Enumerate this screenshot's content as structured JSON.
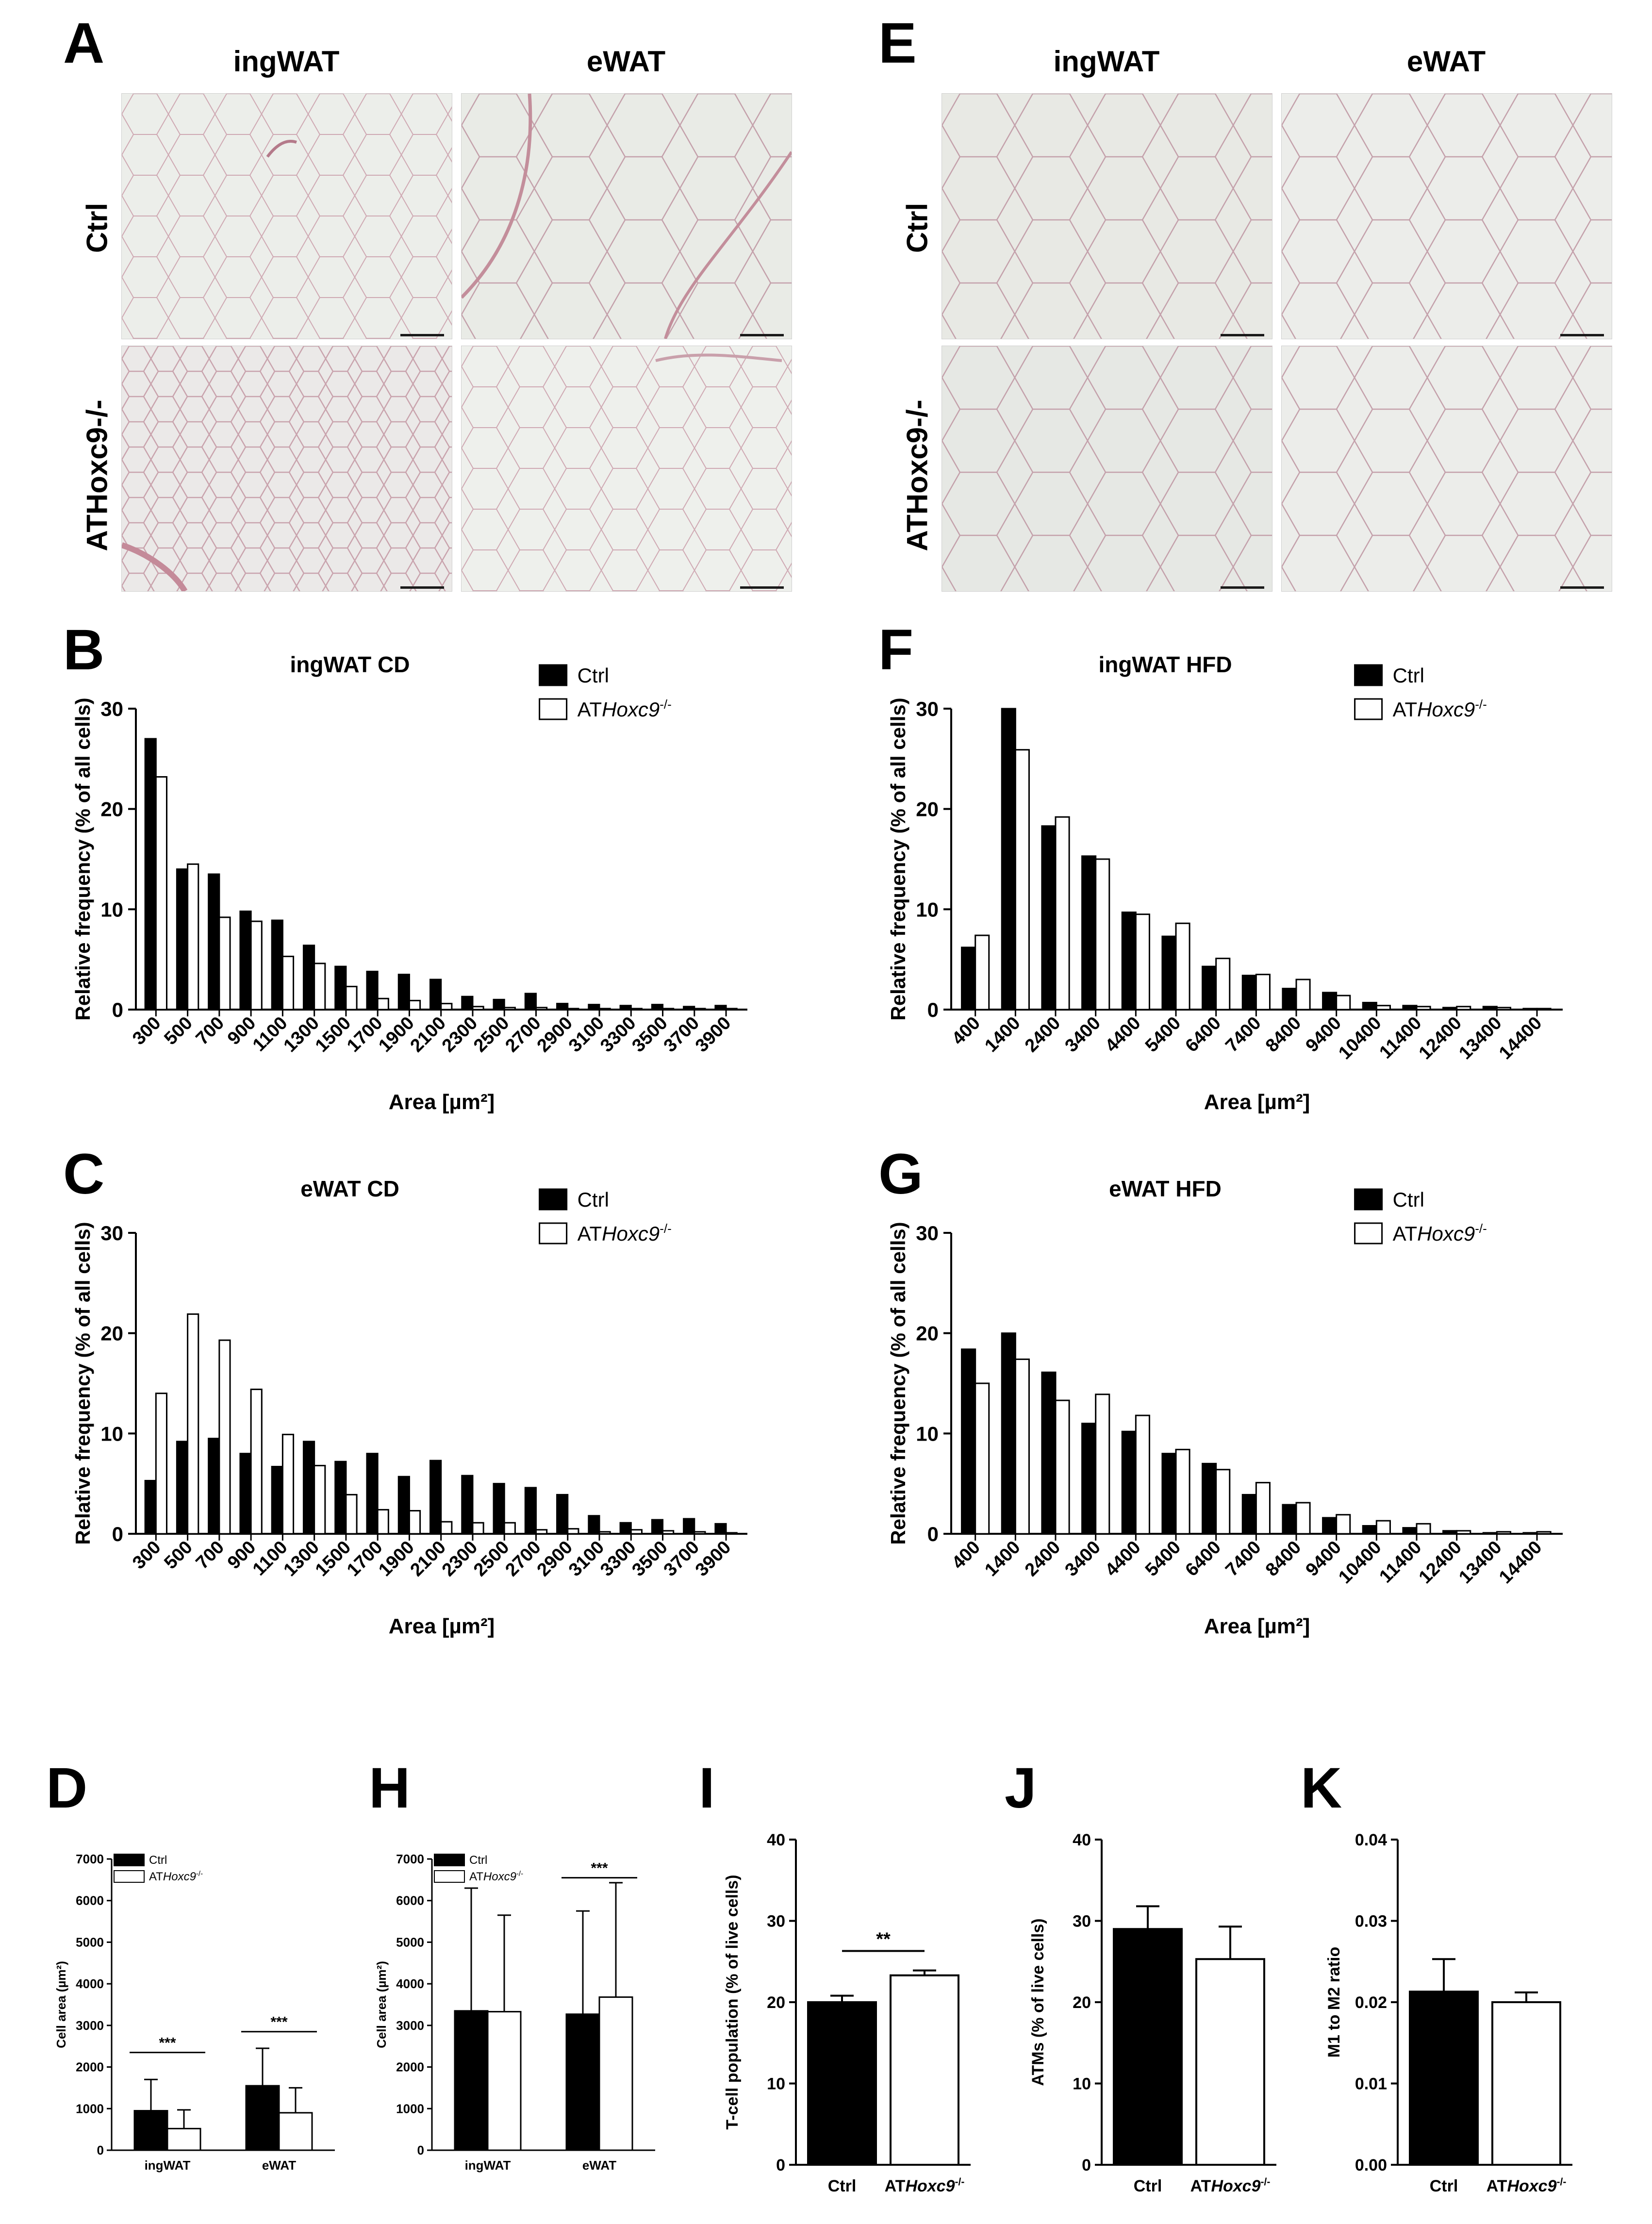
{
  "panels": {
    "A": {
      "letter": "A",
      "cols": [
        "ingWAT",
        "eWAT"
      ],
      "rows": [
        "Ctrl",
        "ATHoxc9-/-"
      ]
    },
    "E": {
      "letter": "E",
      "cols": [
        "ingWAT",
        "eWAT"
      ],
      "rows": [
        "Ctrl",
        "ATHoxc9-/-"
      ]
    },
    "letters": {
      "B": "B",
      "C": "C",
      "D": "D",
      "F": "F",
      "G": "G",
      "H": "H",
      "I": "I",
      "J": "J",
      "K": "K"
    }
  },
  "colors": {
    "ctrl": "#000000",
    "ko": "#ffffff",
    "tissue_bg": "#eceeea",
    "membrane": "#c9a3ad"
  },
  "chart_data": [
    {
      "id": "B",
      "type": "bar",
      "title": "ingWAT CD",
      "xlabel": "Area [µm²]",
      "ylabel": "Relative frequency (% of all cells)",
      "ylim": [
        0,
        30
      ],
      "yticks": [
        0,
        10,
        20,
        30
      ],
      "categories": [
        "300",
        "500",
        "700",
        "900",
        "1100",
        "1300",
        "1500",
        "1700",
        "1900",
        "2100",
        "2300",
        "2500",
        "2700",
        "2900",
        "3100",
        "3300",
        "3500",
        "3700",
        "3900"
      ],
      "series": [
        {
          "name": "Ctrl",
          "values": [
            27,
            14,
            13.5,
            9.8,
            8.9,
            6.4,
            4.3,
            3.8,
            3.5,
            3.0,
            1.3,
            1.0,
            1.6,
            0.6,
            0.5,
            0.4,
            0.5,
            0.3,
            0.4
          ]
        },
        {
          "name": "ATHoxc9-/-",
          "values": [
            23.2,
            14.5,
            9.2,
            8.8,
            5.3,
            4.6,
            2.3,
            1.1,
            0.9,
            0.6,
            0.3,
            0.2,
            0.2,
            0.1,
            0.1,
            0.1,
            0.1,
            0.1,
            0.1
          ]
        }
      ],
      "legend": "top-right"
    },
    {
      "id": "C",
      "type": "bar",
      "title": "eWAT CD",
      "xlabel": "Area [µm²]",
      "ylabel": "Relative frequency (% of all cells)",
      "ylim": [
        0,
        30
      ],
      "yticks": [
        0,
        10,
        20,
        30
      ],
      "categories": [
        "300",
        "500",
        "700",
        "900",
        "1100",
        "1300",
        "1500",
        "1700",
        "1900",
        "2100",
        "2300",
        "2500",
        "2700",
        "2900",
        "3100",
        "3300",
        "3500",
        "3700",
        "3900"
      ],
      "series": [
        {
          "name": "Ctrl",
          "values": [
            5.3,
            9.2,
            9.5,
            8.0,
            6.7,
            9.2,
            7.2,
            8.0,
            5.7,
            7.3,
            5.8,
            5.0,
            4.6,
            3.9,
            1.8,
            1.1,
            1.4,
            1.5,
            1.0
          ]
        },
        {
          "name": "ATHoxc9-/-",
          "values": [
            14.0,
            21.9,
            19.3,
            14.4,
            9.9,
            6.8,
            3.9,
            2.4,
            2.3,
            1.2,
            1.1,
            1.1,
            0.4,
            0.5,
            0.2,
            0.4,
            0.3,
            0.2,
            0.1
          ]
        }
      ],
      "legend": "top-right"
    },
    {
      "id": "F",
      "type": "bar",
      "title": "ingWAT HFD",
      "xlabel": "Area [µm²]",
      "ylabel": "Relative frequency (% of all cells)",
      "ylim": [
        0,
        30
      ],
      "yticks": [
        0,
        10,
        20,
        30
      ],
      "categories": [
        "400",
        "1400",
        "2400",
        "3400",
        "4400",
        "5400",
        "6400",
        "7400",
        "8400",
        "9400",
        "10400",
        "11400",
        "12400",
        "13400",
        "14400"
      ],
      "series": [
        {
          "name": "Ctrl",
          "values": [
            6.2,
            30.0,
            18.3,
            15.3,
            9.7,
            7.3,
            4.3,
            3.4,
            2.1,
            1.7,
            0.7,
            0.4,
            0.2,
            0.3,
            0.1
          ]
        },
        {
          "name": "ATHoxc9-/-",
          "values": [
            7.4,
            25.9,
            19.2,
            15.0,
            9.5,
            8.6,
            5.1,
            3.5,
            3.0,
            1.4,
            0.4,
            0.3,
            0.3,
            0.2,
            0.1
          ]
        }
      ],
      "legend": "top-right"
    },
    {
      "id": "G",
      "type": "bar",
      "title": "eWAT HFD",
      "xlabel": "Area [µm²]",
      "ylabel": "Relative frequency (% of all cells)",
      "ylim": [
        0,
        30
      ],
      "yticks": [
        0,
        10,
        20,
        30
      ],
      "categories": [
        "400",
        "1400",
        "2400",
        "3400",
        "4400",
        "5400",
        "6400",
        "7400",
        "8400",
        "9400",
        "10400",
        "11400",
        "12400",
        "13400",
        "14400"
      ],
      "series": [
        {
          "name": "Ctrl",
          "values": [
            18.4,
            20.0,
            16.1,
            11.0,
            10.2,
            8.0,
            7.0,
            3.9,
            2.9,
            1.6,
            0.8,
            0.6,
            0.3,
            0.1,
            0.1
          ]
        },
        {
          "name": "ATHoxc9-/-",
          "values": [
            15.0,
            17.4,
            13.3,
            13.9,
            11.8,
            8.4,
            6.4,
            5.1,
            3.1,
            1.9,
            1.3,
            1.0,
            0.3,
            0.2,
            0.2
          ]
        }
      ],
      "legend": "top-right"
    },
    {
      "id": "D",
      "type": "bar",
      "ylabel": "Cell area (µm²)",
      "ylim": [
        0,
        7000
      ],
      "yticks": [
        0,
        1000,
        2000,
        3000,
        4000,
        5000,
        6000,
        7000
      ],
      "categories": [
        "ingWAT",
        "eWAT"
      ],
      "series": [
        {
          "name": "Ctrl",
          "values": [
            950,
            1550
          ],
          "errors": [
            750,
            900
          ]
        },
        {
          "name": "ATHoxc9-/-",
          "values": [
            520,
            900
          ],
          "errors": [
            450,
            600
          ]
        }
      ],
      "significance": [
        {
          "group": "ingWAT",
          "label": "***",
          "y": 2350
        },
        {
          "group": "eWAT",
          "label": "***",
          "y": 2850
        }
      ],
      "legend": "top-left"
    },
    {
      "id": "H",
      "type": "bar",
      "ylabel": "Cell area (µm²)",
      "ylim": [
        0,
        7000
      ],
      "yticks": [
        0,
        1000,
        2000,
        3000,
        4000,
        5000,
        6000,
        7000
      ],
      "categories": [
        "ingWAT",
        "eWAT"
      ],
      "series": [
        {
          "name": "Ctrl",
          "values": [
            3350,
            3270
          ],
          "errors": [
            2950,
            2480
          ]
        },
        {
          "name": "ATHoxc9-/-",
          "values": [
            3330,
            3680
          ],
          "errors": [
            2320,
            2750
          ]
        }
      ],
      "significance": [
        {
          "group": "eWAT",
          "label": "***",
          "y": 6550
        }
      ],
      "legend": "top-left"
    },
    {
      "id": "I",
      "type": "bar",
      "ylabel": "T-cell population (% of live cells)",
      "ylim": [
        0,
        40
      ],
      "yticks": [
        0,
        10,
        20,
        30,
        40
      ],
      "categories": [
        "Ctrl",
        "ATHoxc9-/-"
      ],
      "series": [
        {
          "name": "",
          "values": [
            20.0,
            23.3
          ],
          "errors": [
            0.8,
            0.6
          ]
        }
      ],
      "significance": [
        {
          "label": "**",
          "y": 26.3
        }
      ]
    },
    {
      "id": "J",
      "type": "bar",
      "ylabel": "ATMs (% of live cells)",
      "ylim": [
        0,
        40
      ],
      "yticks": [
        0,
        10,
        20,
        30,
        40
      ],
      "categories": [
        "Ctrl",
        "ATHoxc9-/-"
      ],
      "series": [
        {
          "name": "",
          "values": [
            29.0,
            25.3
          ],
          "errors": [
            2.8,
            4.0
          ]
        }
      ]
    },
    {
      "id": "K",
      "type": "bar",
      "ylabel": "M1 to M2 ratio",
      "ylim": [
        0,
        0.04
      ],
      "yticks": [
        "0.00",
        "0.01",
        "0.02",
        "0.03",
        "0.04"
      ],
      "categories": [
        "Ctrl",
        "ATHoxc9-/-"
      ],
      "series": [
        {
          "name": "",
          "values": [
            0.0213,
            0.02
          ],
          "errors": [
            0.004,
            0.0012
          ]
        }
      ]
    }
  ]
}
